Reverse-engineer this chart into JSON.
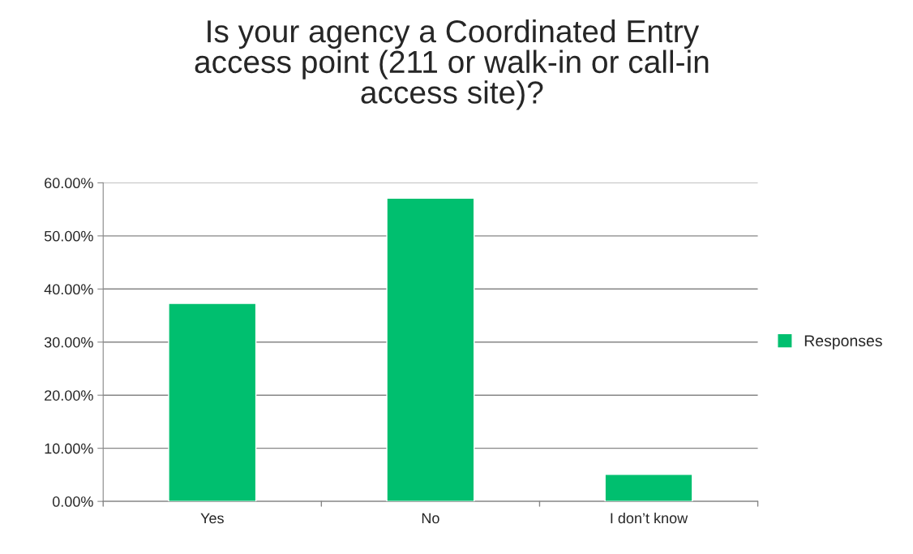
{
  "chart_data": {
    "type": "bar",
    "title": "Is your agency a Coordinated Entry\naccess point (211 or walk-in or call-in\naccess site)?",
    "categories": [
      "Yes",
      "No",
      "I don’t know"
    ],
    "series": [
      {
        "name": "Responses",
        "color": "#00bf6f",
        "values": [
          37.3,
          57.1,
          5.1
        ]
      }
    ],
    "ylim": [
      0,
      60
    ],
    "yticks": [
      {
        "value": 0,
        "label": "0.00%"
      },
      {
        "value": 10,
        "label": "10.00%"
      },
      {
        "value": 20,
        "label": "20.00%"
      },
      {
        "value": 30,
        "label": "30.00%"
      },
      {
        "value": 40,
        "label": "40.00%"
      },
      {
        "value": 50,
        "label": "50.00%"
      },
      {
        "value": 60,
        "label": "60.00%"
      }
    ],
    "grid": "y",
    "legend": "right"
  }
}
